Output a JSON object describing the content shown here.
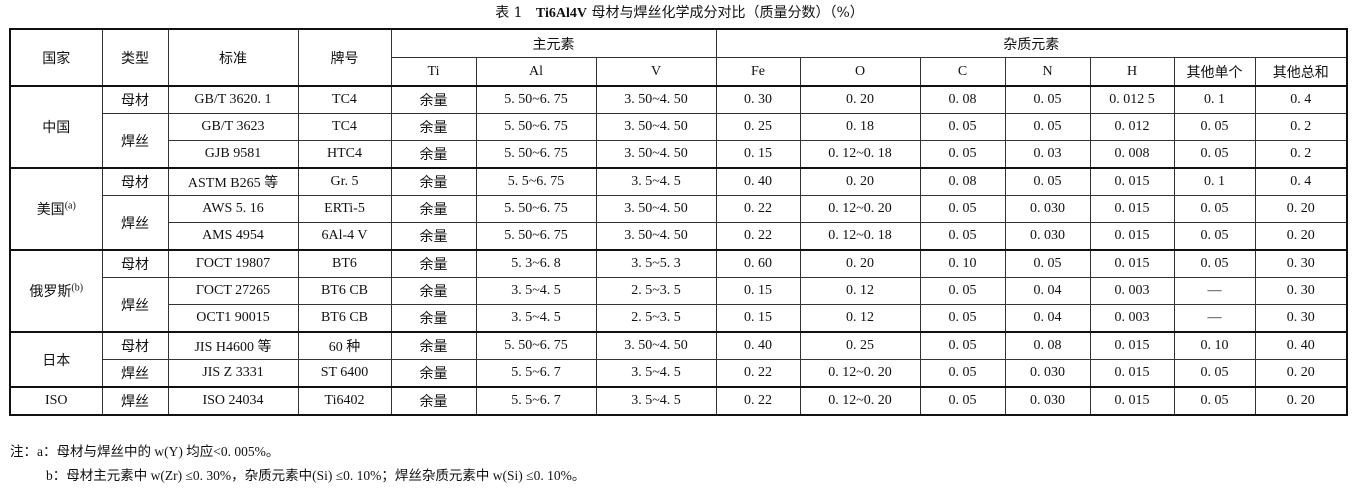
{
  "title": {
    "label": "表 1",
    "name": "Ti6Al4V",
    "rest": "母材与焊丝化学成分对比（质量分数）（%）"
  },
  "header": {
    "country": "国家",
    "type": "类型",
    "standard": "标准",
    "grade": "牌号",
    "main": "主元素",
    "impurity": "杂质元素",
    "elements": [
      "Ti",
      "Al",
      "V",
      "Fe",
      "O",
      "C",
      "N",
      "H",
      "其他单个",
      "其他总和"
    ]
  },
  "groups": [
    {
      "country": "中国",
      "sup": "",
      "types": [
        {
          "type": "母材",
          "rows": [
            [
              "GB/T 3620. 1",
              "TC4",
              "余量",
              "5. 50~6. 75",
              "3. 50~4. 50",
              "0. 30",
              "0. 20",
              "0. 08",
              "0. 05",
              "0. 012 5",
              "0. 1",
              "0. 4"
            ]
          ]
        },
        {
          "type": "焊丝",
          "rows": [
            [
              "GB/T 3623",
              "TC4",
              "余量",
              "5. 50~6. 75",
              "3. 50~4. 50",
              "0. 25",
              "0. 18",
              "0. 05",
              "0. 05",
              "0. 012",
              "0. 05",
              "0. 2"
            ],
            [
              "GJB 9581",
              "HTC4",
              "余量",
              "5. 50~6. 75",
              "3. 50~4. 50",
              "0. 15",
              "0. 12~0. 18",
              "0. 05",
              "0. 03",
              "0. 008",
              "0. 05",
              "0. 2"
            ]
          ]
        }
      ]
    },
    {
      "country": "美国",
      "sup": "(a)",
      "types": [
        {
          "type": "母材",
          "rows": [
            [
              "ASTM B265 等",
              "Gr. 5",
              "余量",
              "5. 5~6. 75",
              "3. 5~4. 5",
              "0. 40",
              "0. 20",
              "0. 08",
              "0. 05",
              "0. 015",
              "0. 1",
              "0. 4"
            ]
          ]
        },
        {
          "type": "焊丝",
          "rows": [
            [
              "AWS 5. 16",
              "ERTi-5",
              "余量",
              "5. 50~6. 75",
              "3. 50~4. 50",
              "0. 22",
              "0. 12~0. 20",
              "0. 05",
              "0. 030",
              "0. 015",
              "0. 05",
              "0. 20"
            ],
            [
              "AMS 4954",
              "6Al-4 V",
              "余量",
              "5. 50~6. 75",
              "3. 50~4. 50",
              "0. 22",
              "0. 12~0. 18",
              "0. 05",
              "0. 030",
              "0. 015",
              "0. 05",
              "0. 20"
            ]
          ]
        }
      ]
    },
    {
      "country": "俄罗斯",
      "sup": "(b)",
      "types": [
        {
          "type": "母材",
          "rows": [
            [
              "ГOCT 19807",
              "BT6",
              "余量",
              "5. 3~6. 8",
              "3. 5~5. 3",
              "0. 60",
              "0. 20",
              "0. 10",
              "0. 05",
              "0. 015",
              "0. 05",
              "0. 30"
            ]
          ]
        },
        {
          "type": "焊丝",
          "rows": [
            [
              "ГOCT 27265",
              "BT6 CB",
              "余量",
              "3. 5~4. 5",
              "2. 5~3. 5",
              "0. 15",
              "0. 12",
              "0. 05",
              "0. 04",
              "0. 003",
              "—",
              "0. 30"
            ],
            [
              "OCT1 90015",
              "BT6 CB",
              "余量",
              "3. 5~4. 5",
              "2. 5~3. 5",
              "0. 15",
              "0. 12",
              "0. 05",
              "0. 04",
              "0. 003",
              "—",
              "0. 30"
            ]
          ]
        }
      ]
    },
    {
      "country": "日本",
      "sup": "",
      "types": [
        {
          "type": "母材",
          "rows": [
            [
              "JIS H4600 等",
              "60 种",
              "余量",
              "5. 50~6. 75",
              "3. 50~4. 50",
              "0. 40",
              "0. 25",
              "0. 05",
              "0. 08",
              "0. 015",
              "0. 10",
              "0. 40"
            ]
          ]
        },
        {
          "type": "焊丝",
          "rows": [
            [
              "JIS Z 3331",
              "ST 6400",
              "余量",
              "5. 5~6. 7",
              "3. 5~4. 5",
              "0. 22",
              "0. 12~0. 20",
              "0. 05",
              "0. 030",
              "0. 015",
              "0. 05",
              "0. 20"
            ]
          ]
        }
      ]
    },
    {
      "country": "ISO",
      "sup": "",
      "types": [
        {
          "type": "焊丝",
          "rows": [
            [
              "ISO 24034",
              "Ti6402",
              "余量",
              "5. 5~6. 7",
              "3. 5~4. 5",
              "0. 22",
              "0. 12~0. 20",
              "0. 05",
              "0. 030",
              "0. 015",
              "0. 05",
              "0. 20"
            ]
          ]
        }
      ]
    }
  ],
  "notes": [
    "注：a：母材与焊丝中的 w(Y) 均应<0. 005%。",
    "b：母材主元素中 w(Zr) ≤0. 30%，杂质元素中(Si) ≤0. 10%；焊丝杂质元素中 w(Si) ≤0. 10%。"
  ]
}
